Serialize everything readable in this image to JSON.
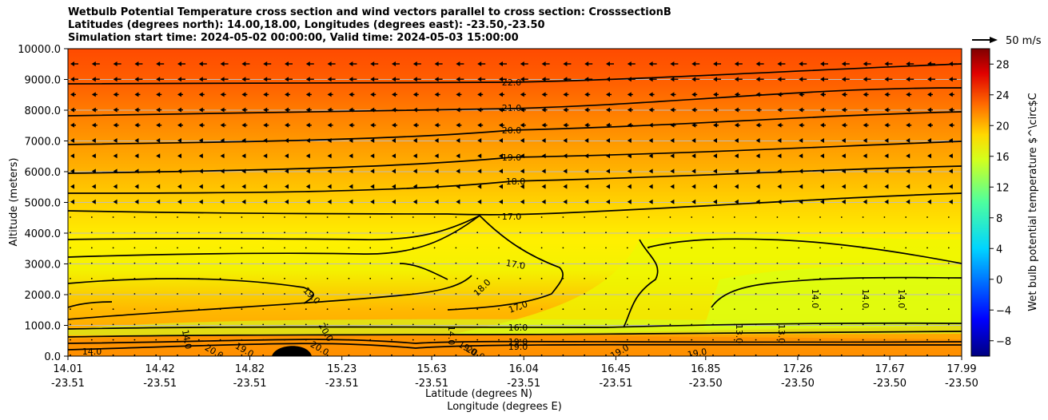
{
  "chart_data": {
    "type": "contour-cross-section",
    "title_lines": [
      "Wetbulb Potential Temperature cross section and wind vectors parallel to cross section: CrosssectionB",
      "Latitudes (degrees north): 14.00,18.00, Longitudes (degrees east): -23.50,-23.50",
      "Simulation start time: 2024-05-02 00:00:00, Valid time: 2024-05-03 15:00:00"
    ],
    "ylabel": "Altitude (meters)",
    "xlabel_lat": "Latitude (degrees N)",
    "xlabel_lon": "Longitude (degrees E)",
    "ylim": [
      0,
      10000
    ],
    "yticks": [
      "0.0",
      "1000.0",
      "2000.0",
      "3000.0",
      "4000.0",
      "5000.0",
      "6000.0",
      "7000.0",
      "8000.0",
      "9000.0",
      "10000.0"
    ],
    "xticks": [
      {
        "lat": "14.01",
        "lon": "-23.51"
      },
      {
        "lat": "14.42",
        "lon": "-23.51"
      },
      {
        "lat": "14.82",
        "lon": "-23.51"
      },
      {
        "lat": "15.23",
        "lon": "-23.51"
      },
      {
        "lat": "15.63",
        "lon": "-23.51"
      },
      {
        "lat": "16.04",
        "lon": "-23.51"
      },
      {
        "lat": "16.45",
        "lon": "-23.51"
      },
      {
        "lat": "16.85",
        "lon": "-23.50"
      },
      {
        "lat": "17.26",
        "lon": "-23.50"
      },
      {
        "lat": "17.67",
        "lon": "-23.50"
      },
      {
        "lat": "17.99",
        "lon": "-23.50"
      }
    ],
    "colorbar": {
      "label": "Wet bulb potential temperature $^\\circ$C",
      "range": [
        -10,
        30
      ],
      "ticks": [
        "−8",
        "−4",
        "0",
        "4",
        "8",
        "12",
        "16",
        "20",
        "24",
        "28"
      ]
    },
    "quiver_key": "50 m/s",
    "grid": "horizontal",
    "contour_labels": [
      "22.0",
      "21.0",
      "20.0",
      "19.0",
      "18.0",
      "17.0",
      "17.0",
      "18.0",
      "19.0",
      "17.0",
      "16.0",
      "19.0",
      "19.0",
      "14.0",
      "14.0",
      "14.0",
      "13.0",
      "13.0",
      "14.0",
      "19.0",
      "19.0",
      "20.0",
      "14.0",
      "20.0",
      "20.0",
      "19.0",
      "19.0",
      "20.0",
      "14.0"
    ]
  }
}
